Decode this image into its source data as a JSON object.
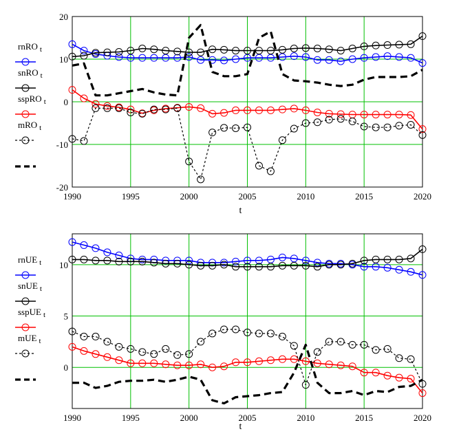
{
  "chart_data": [
    {
      "type": "line",
      "x": [
        1990,
        1991,
        1992,
        1993,
        1994,
        1995,
        1996,
        1997,
        1998,
        1999,
        2000,
        2001,
        2002,
        2003,
        2004,
        2005,
        2006,
        2007,
        2008,
        2009,
        2010,
        2011,
        2012,
        2013,
        2014,
        2015,
        2016,
        2017,
        2018,
        2019,
        2020
      ],
      "xlim": [
        1990,
        2020
      ],
      "ylim": [
        -20,
        20
      ],
      "xticks": [
        "1990",
        "1995",
        "2000",
        "2005",
        "2010",
        "2015",
        "2020"
      ],
      "yticks": [
        "20",
        "10",
        "0",
        "-10",
        "-20"
      ],
      "xlabel": "t",
      "grid": true,
      "legend_position": "left",
      "series": [
        {
          "name": "rnRO",
          "sub": "t",
          "color": "#0000ff",
          "style": "solid-circles",
          "values": [
            13.5,
            12.0,
            11.2,
            10.8,
            10.5,
            10.3,
            10.3,
            10.3,
            10.3,
            10.3,
            10.5,
            9.8,
            9.8,
            9.7,
            10.0,
            10.3,
            10.3,
            10.3,
            10.5,
            10.7,
            10.5,
            9.8,
            9.8,
            9.5,
            10.0,
            10.3,
            10.5,
            10.7,
            10.5,
            10.3,
            9.1
          ]
        },
        {
          "name": "snRO",
          "sub": "t",
          "color": "#000000",
          "style": "solid-circles",
          "values": [
            10.6,
            10.8,
            11.5,
            11.6,
            11.7,
            12.0,
            12.5,
            12.3,
            12.0,
            11.8,
            11.6,
            11.6,
            12.3,
            12.2,
            12.0,
            12.0,
            12.0,
            12.0,
            12.2,
            12.5,
            12.6,
            12.5,
            12.3,
            12.0,
            12.5,
            13.0,
            13.2,
            13.3,
            13.4,
            13.5,
            15.4
          ]
        },
        {
          "name": "sspRO",
          "sub": "t",
          "color": "#ff0000",
          "style": "solid-circles",
          "values": [
            2.8,
            0.8,
            -0.5,
            -1.0,
            -1.3,
            -1.8,
            -2.7,
            -2.0,
            -1.6,
            -1.4,
            -1.2,
            -1.5,
            -2.8,
            -2.6,
            -2.0,
            -2.0,
            -2.0,
            -2.0,
            -1.8,
            -1.6,
            -2.0,
            -2.5,
            -2.8,
            -2.9,
            -3.0,
            -3.0,
            -3.0,
            -3.0,
            -3.0,
            -3.1,
            -6.4
          ]
        },
        {
          "name": "mRO",
          "sub": "t",
          "color": "#000000",
          "style": "dotted-circles",
          "values": [
            -8.7,
            -9.2,
            -1.5,
            -1.5,
            -1.5,
            -2.5,
            -2.8,
            -1.8,
            -1.8,
            -1.5,
            -14.0,
            -18.2,
            -7.2,
            -6.1,
            -6.2,
            -6.0,
            -15.0,
            -16.3,
            -9.0,
            -6.3,
            -5.0,
            -4.8,
            -4.2,
            -4.0,
            -4.6,
            -5.8,
            -6.0,
            -6.0,
            -5.6,
            -5.4,
            -7.8
          ]
        },
        {
          "name": "",
          "sub": "",
          "color": "#000000",
          "style": "dashed",
          "values": [
            8.5,
            9.0,
            1.5,
            1.5,
            2.0,
            2.5,
            3.0,
            2.2,
            1.7,
            1.5,
            15.0,
            18.0,
            7.0,
            6.0,
            6.0,
            6.5,
            15.0,
            16.5,
            6.5,
            5.0,
            4.8,
            4.5,
            4.0,
            3.7,
            4.0,
            5.2,
            5.8,
            5.8,
            5.8,
            6.0,
            7.5
          ]
        }
      ]
    },
    {
      "type": "line",
      "x": [
        1990,
        1991,
        1992,
        1993,
        1994,
        1995,
        1996,
        1997,
        1998,
        1999,
        2000,
        2001,
        2002,
        2003,
        2004,
        2005,
        2006,
        2007,
        2008,
        2009,
        2010,
        2011,
        2012,
        2013,
        2014,
        2015,
        2016,
        2017,
        2018,
        2019,
        2020
      ],
      "xlim": [
        1990,
        2020
      ],
      "ylim": [
        -4,
        13
      ],
      "xticks": [
        "1990",
        "1995",
        "2000",
        "2005",
        "2010",
        "2015",
        "2020"
      ],
      "yticks": [
        "10",
        "5",
        "0"
      ],
      "ytick_values": [
        10,
        5,
        0
      ],
      "xlabel": "t",
      "grid": true,
      "legend_position": "left",
      "series": [
        {
          "name": "rnUE",
          "sub": "t",
          "color": "#0000ff",
          "style": "solid-circles",
          "values": [
            12.2,
            11.9,
            11.6,
            11.2,
            10.9,
            10.6,
            10.5,
            10.5,
            10.4,
            10.4,
            10.4,
            10.2,
            10.2,
            10.2,
            10.3,
            10.4,
            10.4,
            10.5,
            10.7,
            10.6,
            10.4,
            10.2,
            10.1,
            10.1,
            10.0,
            9.8,
            9.8,
            9.7,
            9.5,
            9.3,
            9.0
          ]
        },
        {
          "name": "snUE",
          "sub": "t",
          "color": "#000000",
          "style": "solid-circles",
          "values": [
            10.5,
            10.5,
            10.4,
            10.4,
            10.3,
            10.3,
            10.3,
            10.2,
            10.1,
            10.1,
            10.0,
            9.9,
            9.9,
            10.0,
            9.8,
            9.8,
            9.8,
            9.8,
            9.9,
            9.9,
            9.9,
            9.8,
            10.0,
            10.0,
            10.1,
            10.4,
            10.5,
            10.5,
            10.5,
            10.6,
            11.5
          ]
        },
        {
          "name": "sspUE",
          "sub": "t",
          "color": "#ff0000",
          "style": "solid-circles",
          "values": [
            2.0,
            1.6,
            1.3,
            1.0,
            0.7,
            0.4,
            0.4,
            0.4,
            0.3,
            0.2,
            0.2,
            0.3,
            0.0,
            0.1,
            0.5,
            0.5,
            0.6,
            0.7,
            0.8,
            0.8,
            0.6,
            0.4,
            0.3,
            0.2,
            0.1,
            -0.5,
            -0.5,
            -0.8,
            -1.0,
            -1.1,
            -2.5
          ]
        },
        {
          "name": "mUE",
          "sub": "t",
          "color": "#000000",
          "style": "dotted-circles",
          "values": [
            3.5,
            3.0,
            3.0,
            2.5,
            2.0,
            1.8,
            1.5,
            1.3,
            1.8,
            1.2,
            1.3,
            2.5,
            3.3,
            3.7,
            3.7,
            3.4,
            3.3,
            3.3,
            3.0,
            2.1,
            -1.7,
            1.5,
            2.5,
            2.5,
            2.2,
            2.2,
            1.7,
            1.8,
            0.9,
            0.8,
            -1.6
          ]
        },
        {
          "name": "",
          "sub": "",
          "color": "#000000",
          "style": "dashed",
          "values": [
            -1.5,
            -1.5,
            -2.0,
            -1.8,
            -1.4,
            -1.3,
            -1.3,
            -1.2,
            -1.4,
            -1.2,
            -0.9,
            -1.2,
            -3.2,
            -3.5,
            -2.9,
            -2.8,
            -2.7,
            -2.5,
            -2.4,
            -0.5,
            2.2,
            -1.5,
            -2.5,
            -2.5,
            -2.3,
            -2.7,
            -2.3,
            -2.4,
            -1.9,
            -1.8,
            -1.2
          ]
        }
      ]
    }
  ]
}
